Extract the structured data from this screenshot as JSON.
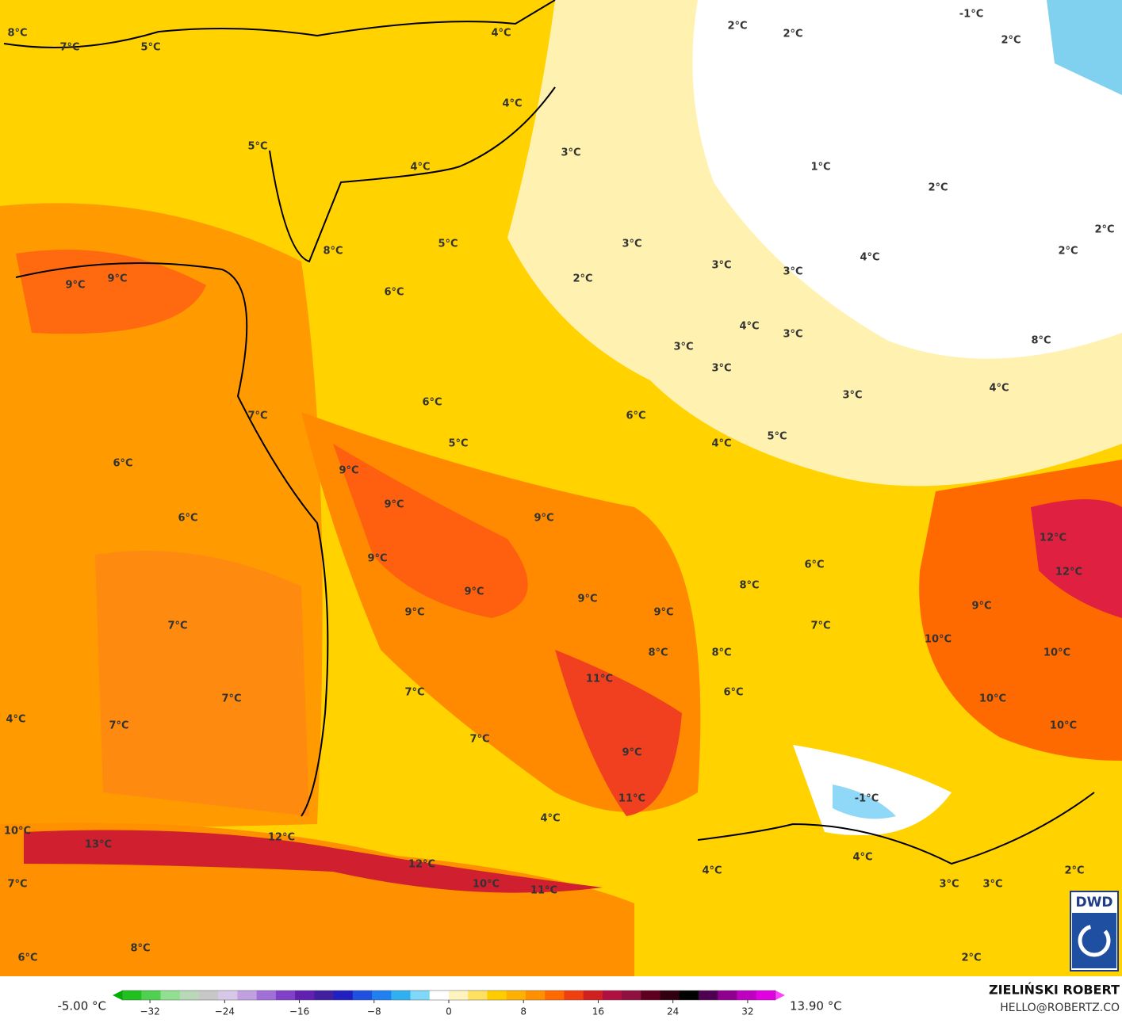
{
  "map": {
    "labels": [
      "8°C",
      "7°C",
      "5°C",
      "4°C",
      "4°C",
      "5°C",
      "4°C",
      "3°C",
      "2°C",
      "2°C",
      "-1°C",
      "2°C",
      "1°C",
      "2°C",
      "2°C",
      "2°C",
      "8°C",
      "5°C",
      "3°C",
      "3°C",
      "3°C",
      "4°C",
      "9°C",
      "9°C",
      "6°C",
      "2°C",
      "4°C",
      "3°C",
      "3°C",
      "3°C",
      "8°C",
      "4°C",
      "3°C",
      "6°C",
      "7°C",
      "6°C",
      "5°C",
      "4°C",
      "5°C",
      "6°C",
      "9°C",
      "9°C",
      "6°C",
      "9°C",
      "12°C",
      "9°C",
      "6°C",
      "12°C",
      "8°C",
      "9°C",
      "9°C",
      "9°C",
      "9°C",
      "9°C",
      "7°C",
      "7°C",
      "10°C",
      "8°C",
      "8°C",
      "10°C",
      "11°C",
      "7°C",
      "7°C",
      "6°C",
      "10°C",
      "4°C",
      "7°C",
      "10°C",
      "7°C",
      "9°C",
      "-1°C",
      "11°C",
      "4°C",
      "10°C",
      "12°C",
      "13°C",
      "4°C",
      "12°C",
      "4°C",
      "2°C",
      "7°C",
      "10°C",
      "3°C",
      "3°C",
      "11°C",
      "8°C",
      "6°C",
      "2°C"
    ],
    "logo": "DWD"
  },
  "legend": {
    "min_label": "-5.00 °C",
    "max_label": "13.90 °C",
    "lim": [
      -36,
      36
    ],
    "colors": [
      "#00b000",
      "#20c020",
      "#50d050",
      "#90e090",
      "#b8d8b8",
      "#c8c8c8",
      "#d8c8e8",
      "#c0a0e0",
      "#a070d8",
      "#8040c8",
      "#6020b0",
      "#4020a0",
      "#2020c0",
      "#2050e0",
      "#2080f0",
      "#30b0f0",
      "#80d8f8",
      "#ffffff",
      "#fff4c0",
      "#ffe060",
      "#ffcc00",
      "#ffb000",
      "#ff9000",
      "#ff6a00",
      "#f04010",
      "#d02020",
      "#b01040",
      "#901040",
      "#600020",
      "#300010",
      "#000000",
      "#500050",
      "#900090",
      "#c000c0",
      "#e000e0",
      "#ff40ff"
    ],
    "ticks": [
      {
        "value": -32,
        "label": "−32"
      },
      {
        "value": -24,
        "label": "−24"
      },
      {
        "value": -16,
        "label": "−16"
      },
      {
        "value": -8,
        "label": "−8"
      },
      0,
      8,
      16,
      24,
      32
    ]
  },
  "credit": {
    "author": "ZIELIŃSKI ROBERT",
    "email": "HELLO@ROBERTZ.CO"
  }
}
